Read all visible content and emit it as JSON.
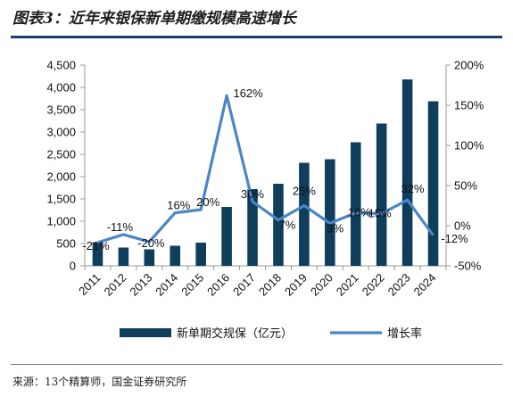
{
  "title": "图表3：近年来银保新单期缴规模高速增长",
  "source": "来源：13个精算师，国金证券研究所",
  "colors": {
    "bar": "#0f3d5c",
    "line": "#4a86c5",
    "rule": "#1b3f6b"
  },
  "chart_data": {
    "type": "bar",
    "categories": [
      "2011",
      "2012",
      "2013",
      "2014",
      "2015",
      "2016",
      "2017",
      "2018",
      "2019",
      "2020",
      "2021",
      "2022",
      "2023",
      "2024"
    ],
    "series": [
      {
        "name": "新单期交规保（亿元）",
        "type": "bar",
        "axis": "left",
        "values": [
          530,
          410,
          370,
          450,
          520,
          1320,
          1720,
          1840,
          2310,
          2390,
          2770,
          3190,
          4180,
          3690
        ]
      },
      {
        "name": "增长率",
        "type": "line",
        "axis": "right",
        "values": [
          -21,
          -11,
          -20,
          16,
          20,
          162,
          30,
          7,
          25,
          3,
          16,
          15,
          32,
          -12
        ],
        "x_index": [
          0,
          1,
          2,
          3,
          4,
          5,
          6,
          7,
          8,
          9,
          10,
          11,
          12,
          13
        ]
      }
    ],
    "point_labels": [
      "-21%",
      "-11%",
      "-20%",
      "16%",
      "20%",
      "162%",
      "30%",
      "7%",
      "25%",
      "3%",
      "16%",
      "15%",
      "32%",
      "-12%"
    ],
    "y_left": {
      "ylim": [
        0,
        4500
      ],
      "ticks": [
        "0",
        "500",
        "1,000",
        "1,500",
        "2,000",
        "2,500",
        "3,000",
        "3,500",
        "4,000",
        "4,500"
      ]
    },
    "y_right": {
      "ylim": [
        -50,
        200
      ],
      "ticks": [
        "-50%",
        "0%",
        "50%",
        "100%",
        "150%",
        "200%"
      ]
    },
    "legend": {
      "position": "bottom",
      "entries": [
        "新单期交规保（亿元）",
        "增长率"
      ]
    },
    "grid": false
  }
}
